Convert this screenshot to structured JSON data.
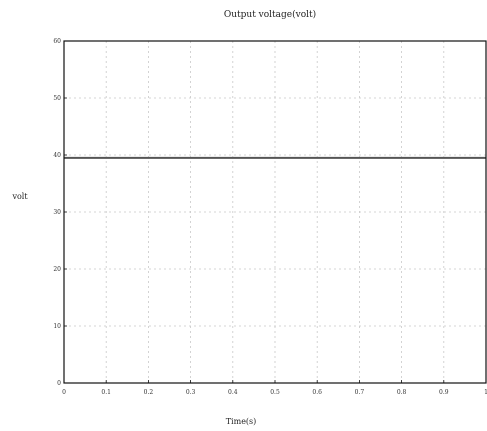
{
  "chart_data": {
    "type": "line",
    "title": "Output voltage(volt)",
    "xlabel": "Time(s)",
    "ylabel": "volt",
    "xlim": [
      0,
      1
    ],
    "ylim": [
      0,
      60
    ],
    "x_ticks": [
      0,
      0.1,
      0.2,
      0.3,
      0.4,
      0.5,
      0.6,
      0.7,
      0.8,
      0.9,
      1
    ],
    "y_ticks": [
      0,
      10,
      20,
      30,
      40,
      50,
      60
    ],
    "grid": true,
    "series": [
      {
        "x": [
          0,
          1
        ],
        "y": [
          39.5,
          39.5
        ],
        "color": "#555555"
      }
    ]
  }
}
